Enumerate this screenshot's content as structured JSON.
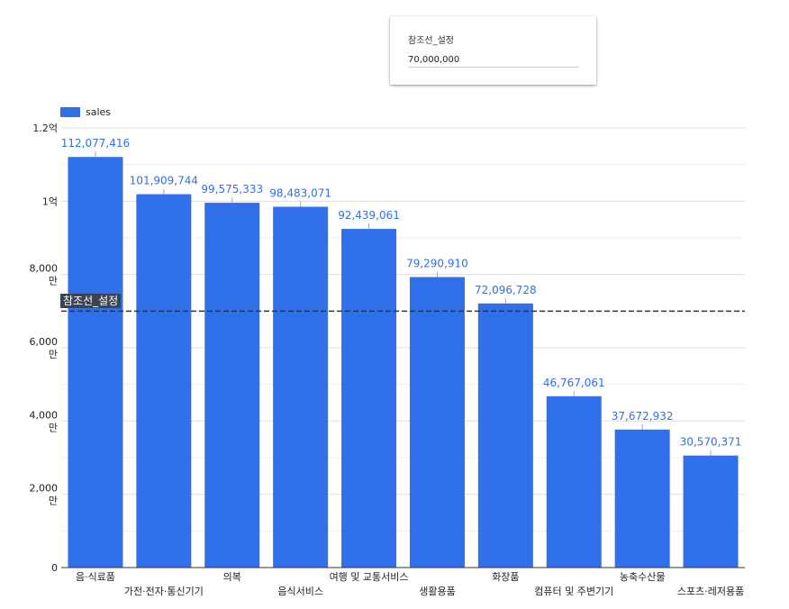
{
  "control": {
    "label": "참조선_설정",
    "value": "70,000,000"
  },
  "chart_data": {
    "type": "bar",
    "categories": [
      "음·식료품",
      "가전·전자·통신기기",
      "의복",
      "음식서비스",
      "여행 및 교통서비스",
      "생활용품",
      "화장품",
      "컴퓨터 및 주변기기",
      "농축수산물",
      "스포츠·레저용품"
    ],
    "series": [
      {
        "name": "sales",
        "values": [
          112077416,
          101909744,
          99575333,
          98483071,
          92439061,
          79290910,
          72096728,
          46767061,
          37672932,
          30570371
        ],
        "data_labels": [
          "112,077,416",
          "101,909,744",
          "99,575,333",
          "98,483,071",
          "92,439,061",
          "79,290,910",
          "72,096,728",
          "46,767,061",
          "37,672,932",
          "30,570,371"
        ]
      }
    ],
    "yticks": [
      0,
      20000000,
      40000000,
      60000000,
      80000000,
      100000000,
      120000000
    ],
    "ytick_labels": [
      [
        "0"
      ],
      [
        "2,000",
        "만"
      ],
      [
        "4,000",
        "만"
      ],
      [
        "6,000",
        "만"
      ],
      [
        "8,000",
        "만"
      ],
      [
        "1억"
      ],
      [
        "1.2억"
      ]
    ],
    "ylim": [
      0,
      120000000
    ],
    "reference_line": {
      "value": 70000000,
      "label": "참조선_설정"
    },
    "grid": true,
    "legend": "top-left",
    "colors": {
      "bar": "#3070e8",
      "data_label": "#3070e8",
      "grid": "#e0e0e0",
      "reference_line": "#333333"
    }
  }
}
